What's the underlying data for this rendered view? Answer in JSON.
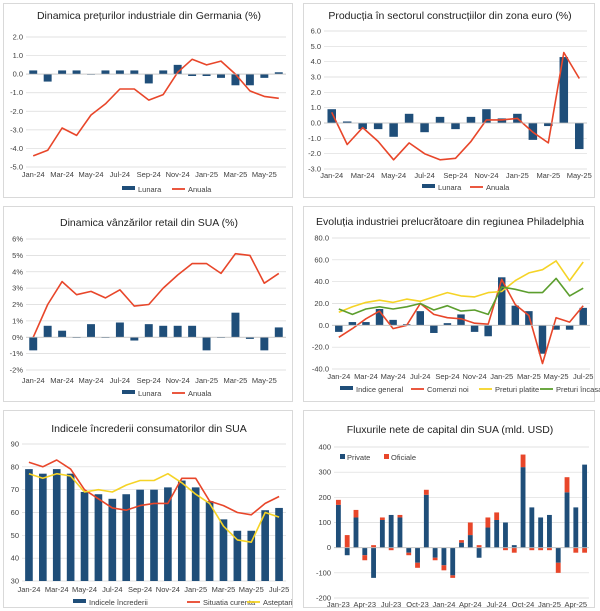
{
  "colors": {
    "bar": "#1f4e79",
    "red": "#e8462a",
    "yellow": "#f5d326",
    "green": "#5c9e2e"
  },
  "chart_data": [
    {
      "type": "bar+line",
      "title": "Dinamica prețurilor industriale din Germania (%)",
      "ylim": [
        -5,
        2
      ],
      "yticks": [
        2.0,
        1.0,
        0.0,
        -1.0,
        -2.0,
        -3.0,
        -4.0,
        -5.0
      ],
      "ytick_labels": [
        "2.0",
        "1.0",
        "0.0",
        "-1.0",
        "-2.0",
        "-3.0",
        "-4.0",
        "-5.0"
      ],
      "categories": [
        "Jan-24",
        "Feb-24",
        "Mar-24",
        "Apr-24",
        "May-24",
        "Jun-24",
        "Jul-24",
        "Aug-24",
        "Sep-24",
        "Oct-24",
        "Nov-24",
        "Dec-24",
        "Jan-25",
        "Feb-25",
        "Mar-25",
        "Apr-25",
        "May-25",
        "Jun-25"
      ],
      "xtick_labels": [
        "Jan-24",
        "Mar-24",
        "May-24",
        "Jul-24",
        "Sep-24",
        "Nov-24",
        "Jan-25",
        "Mar-25",
        "May-25"
      ],
      "series": [
        {
          "name": "Lunara",
          "kind": "bar",
          "values": [
            0.2,
            -0.4,
            0.2,
            0.2,
            0.0,
            0.2,
            0.2,
            0.2,
            -0.5,
            0.2,
            0.5,
            -0.1,
            -0.1,
            -0.2,
            -0.6,
            -0.6,
            -0.2,
            0.1
          ]
        },
        {
          "name": "Anuala",
          "kind": "line",
          "color": "red",
          "values": [
            -4.4,
            -4.1,
            -2.9,
            -3.3,
            -2.2,
            -1.6,
            -0.8,
            -0.8,
            -1.4,
            -1.1,
            0.1,
            0.8,
            0.5,
            0.7,
            0.0,
            -0.9,
            -1.2,
            -1.3
          ]
        }
      ]
    },
    {
      "type": "bar+line",
      "title": "Producția în sectorul construcțiilor din zona euro (%)",
      "ylim": [
        -3,
        6
      ],
      "yticks": [
        6.0,
        5.0,
        4.0,
        3.0,
        2.0,
        1.0,
        0.0,
        -1.0,
        -2.0,
        -3.0
      ],
      "ytick_labels": [
        "6.0",
        "5.0",
        "4.0",
        "3.0",
        "2.0",
        "1.0",
        "0.0",
        "-1.0",
        "-2.0",
        "-3.0"
      ],
      "categories": [
        "Jan-24",
        "Feb-24",
        "Mar-24",
        "Apr-24",
        "May-24",
        "Jun-24",
        "Jul-24",
        "Aug-24",
        "Sep-24",
        "Oct-24",
        "Nov-24",
        "Dec-24",
        "Jan-25",
        "Feb-25",
        "Mar-25",
        "Apr-25",
        "May-25"
      ],
      "xtick_labels": [
        "Jan-24",
        "Mar-24",
        "May-24",
        "Jul-24",
        "Sep-24",
        "Nov-24",
        "Jan-25",
        "Mar-25",
        "May-25"
      ],
      "series": [
        {
          "name": "Lunara",
          "kind": "bar",
          "values": [
            0.9,
            0.1,
            -0.4,
            -0.4,
            -0.9,
            0.6,
            -0.6,
            0.4,
            -0.4,
            0.4,
            0.9,
            0.3,
            0.6,
            -1.1,
            -0.2,
            4.3,
            -1.7
          ]
        },
        {
          "name": "Anuala",
          "kind": "line",
          "color": "red",
          "values": [
            0.7,
            -1.4,
            -0.3,
            -1.2,
            -2.4,
            -1.3,
            -2.0,
            -2.4,
            -2.3,
            -1.2,
            0.2,
            0.2,
            0.3,
            -0.6,
            -1.3,
            4.6,
            2.9
          ]
        }
      ]
    },
    {
      "type": "bar+line",
      "title": "Dinamica vânzărilor retail din SUA (%)",
      "ylim": [
        -2,
        6
      ],
      "yticks": [
        6,
        5,
        4,
        3,
        2,
        1,
        0,
        -1,
        -2
      ],
      "ytick_labels": [
        "6%",
        "5%",
        "4%",
        "3%",
        "2%",
        "1%",
        "0%",
        "-1%",
        "-2%"
      ],
      "categories": [
        "Jan-24",
        "Feb-24",
        "Mar-24",
        "Apr-24",
        "May-24",
        "Jun-24",
        "Jul-24",
        "Aug-24",
        "Sep-24",
        "Oct-24",
        "Nov-24",
        "Dec-24",
        "Jan-25",
        "Feb-25",
        "Mar-25",
        "Apr-25",
        "May-25",
        "Jun-25"
      ],
      "xtick_labels": [
        "Jan-24",
        "Mar-24",
        "May-24",
        "Jul-24",
        "Sep-24",
        "Nov-24",
        "Jan-25",
        "Mar-25",
        "May-25"
      ],
      "series": [
        {
          "name": "Lunara",
          "kind": "bar",
          "values": [
            -0.8,
            0.7,
            0.4,
            0.0,
            0.8,
            0.0,
            0.9,
            -0.2,
            0.8,
            0.7,
            0.7,
            0.7,
            -0.8,
            0.0,
            1.5,
            -0.1,
            -0.8,
            0.6
          ]
        },
        {
          "name": "Anuala",
          "kind": "line",
          "color": "red",
          "values": [
            0.0,
            2.0,
            3.4,
            2.6,
            2.8,
            2.4,
            2.9,
            1.9,
            2.0,
            3.0,
            3.8,
            4.5,
            4.5,
            3.9,
            5.1,
            5.0,
            3.3,
            3.9
          ]
        }
      ]
    },
    {
      "type": "bar+line",
      "title": "Evoluția industriei prelucrătoare din regiunea Philadelphia",
      "ylim": [
        -40,
        80
      ],
      "yticks": [
        80,
        60,
        40,
        20,
        0,
        -20,
        -40
      ],
      "ytick_labels": [
        "80.0",
        "60.0",
        "40.0",
        "20.0",
        "0.0",
        "-20.0",
        "-40.0"
      ],
      "categories": [
        "Jan-24",
        "Feb-24",
        "Mar-24",
        "Apr-24",
        "May-24",
        "Jun-24",
        "Jul-24",
        "Aug-24",
        "Sep-24",
        "Oct-24",
        "Nov-24",
        "Dec-24",
        "Jan-25",
        "Feb-25",
        "Mar-25",
        "Apr-25",
        "May-25",
        "Jun-25",
        "Jul-25"
      ],
      "xtick_labels": [
        "Jan-24",
        "Mar-24",
        "May-24",
        "Jul-24",
        "Sep-24",
        "Nov-24",
        "Jan-25",
        "Mar-25",
        "May-25",
        "Jul-25"
      ],
      "series": [
        {
          "name": "Indice general",
          "kind": "bar",
          "values": [
            -6,
            3,
            3,
            15,
            5,
            1,
            13,
            -7,
            2,
            10,
            -6,
            -10,
            44,
            18,
            13,
            -26,
            -4,
            -4,
            16
          ]
        },
        {
          "name": "Comenzi noi",
          "kind": "line",
          "color": "red",
          "values": [
            -11,
            -3,
            6,
            13,
            -3,
            0,
            20,
            10,
            7,
            6,
            2,
            1,
            42,
            19,
            9,
            -35,
            7,
            3,
            18
          ]
        },
        {
          "name": "Preturi platite",
          "kind": "line",
          "color": "yellow",
          "values": [
            12,
            17,
            21,
            23,
            21,
            24,
            22,
            26,
            30,
            27,
            26,
            30,
            31,
            41,
            48,
            51,
            59,
            41,
            58
          ]
        },
        {
          "name": "Preturi încasate",
          "kind": "line",
          "color": "green",
          "values": [
            15,
            10,
            15,
            17,
            15,
            17,
            20,
            14,
            18,
            13,
            14,
            10,
            35,
            33,
            30,
            30,
            43,
            27,
            34
          ]
        }
      ]
    },
    {
      "type": "bar+line",
      "title": "Indicele încrederii consumatorilor din SUA",
      "ylim": [
        30,
        90
      ],
      "yticks": [
        90,
        80,
        70,
        60,
        50,
        40,
        30
      ],
      "ytick_labels": [
        "90",
        "80",
        "70",
        "60",
        "50",
        "40",
        "30"
      ],
      "categories": [
        "Jan-24",
        "Feb-24",
        "Mar-24",
        "Apr-24",
        "May-24",
        "Jun-24",
        "Jul-24",
        "Aug-24",
        "Sep-24",
        "Oct-24",
        "Nov-24",
        "Dec-24",
        "Jan-25",
        "Feb-25",
        "Mar-25",
        "Apr-25",
        "May-25",
        "Jun-25",
        "Jul-25"
      ],
      "xtick_labels": [
        "Jan-24",
        "Mar-24",
        "May-24",
        "Jul-24",
        "Sep-24",
        "Nov-24",
        "Jan-25",
        "Mar-25",
        "May-25",
        "Jul-25"
      ],
      "series": [
        {
          "name": "Indicele încrederii",
          "kind": "bar",
          "values": [
            79,
            77,
            79,
            77,
            69,
            68,
            66,
            68,
            70,
            70,
            71,
            74,
            71,
            65,
            57,
            52,
            52,
            61,
            62
          ]
        },
        {
          "name": "Situatia curenta",
          "kind": "line",
          "color": "red",
          "values": [
            82,
            80,
            83,
            79,
            70,
            66,
            62,
            61,
            63,
            64,
            64,
            75,
            75,
            65,
            63,
            60,
            59,
            64,
            67
          ]
        },
        {
          "name": "Asteptari",
          "kind": "line",
          "color": "yellow",
          "values": [
            77,
            75,
            77,
            76,
            69,
            70,
            69,
            72,
            74,
            74,
            77,
            73,
            68,
            64,
            54,
            48,
            47,
            60,
            58
          ]
        }
      ]
    },
    {
      "type": "bar",
      "title": "Fluxurile nete de capital din SUA (mld. USD)",
      "ylim": [
        -200,
        400
      ],
      "yticks": [
        400,
        300,
        200,
        100,
        0,
        -100,
        -200
      ],
      "ytick_labels": [
        "400",
        "300",
        "200",
        "100",
        "0",
        "-100",
        "-200"
      ],
      "categories": [
        "Jan-23",
        "Feb-23",
        "Mar-23",
        "Apr-23",
        "May-23",
        "Jun-23",
        "Jul-23",
        "Aug-23",
        "Sep-23",
        "Oct-23",
        "Nov-23",
        "Dec-23",
        "Jan-24",
        "Feb-24",
        "Mar-24",
        "Apr-24",
        "May-24",
        "Jun-24",
        "Jul-24",
        "Aug-24",
        "Sep-24",
        "Oct-24",
        "Nov-24",
        "Dec-24",
        "Jan-25",
        "Feb-25",
        "Mar-25",
        "Apr-25",
        "May-25"
      ],
      "xtick_labels": [
        "Jan-23",
        "Apr-23",
        "Jul-23",
        "Oct-23",
        "Jan-24",
        "Apr-24",
        "Jul-24",
        "Oct-24",
        "Jan-25",
        "Apr-25"
      ],
      "legend": [
        "Private",
        "Oficiale"
      ],
      "series": [
        {
          "name": "Private",
          "kind": "bar",
          "values": [
            170,
            -30,
            120,
            -30,
            -120,
            110,
            130,
            120,
            -20,
            -60,
            210,
            -40,
            -70,
            -110,
            20,
            50,
            -40,
            80,
            110,
            100,
            10,
            320,
            160,
            120,
            130,
            -60,
            220,
            160,
            330
          ]
        },
        {
          "name": "Oficiale",
          "kind": "bar",
          "values": [
            20,
            50,
            30,
            -20,
            10,
            10,
            -10,
            10,
            -10,
            -20,
            20,
            -10,
            -20,
            -10,
            10,
            50,
            10,
            40,
            30,
            -10,
            -20,
            50,
            -10,
            -10,
            -10,
            -40,
            60,
            -20,
            -20
          ]
        }
      ]
    }
  ]
}
